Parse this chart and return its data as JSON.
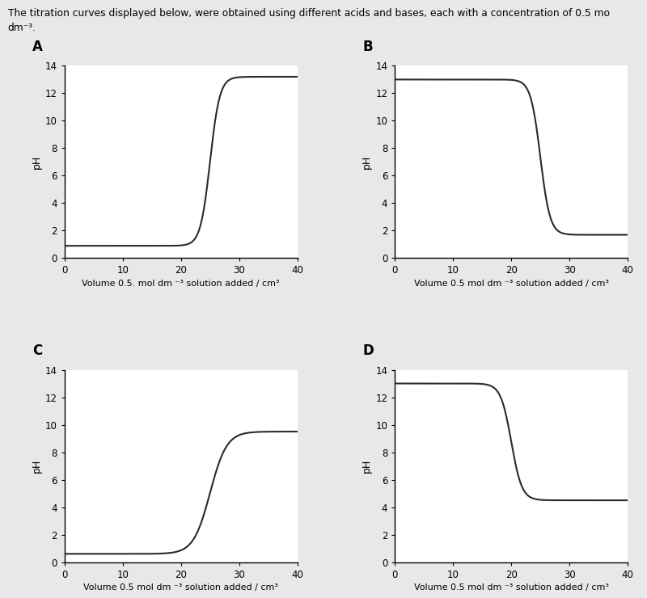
{
  "title_line1": "The titration curves displayed below, were obtained using different acids and bases, each with a concentration of 0.5 mo",
  "title_line2": "dm⁻³.",
  "panels": [
    "A",
    "B",
    "C",
    "D"
  ],
  "xlabels": [
    "Volume 0.5. mol dm ⁻³ solution added / cm³",
    "Volume 0.5 mol dm ⁻³ solution added / cm³",
    "Volume 0.5 mol dm ⁻³ solution added / cm³",
    "Volume 0.5 mol dm ⁻³ solution added / cm³"
  ],
  "ylabel": "pH",
  "xlim": [
    0,
    40
  ],
  "ylim": [
    0,
    14
  ],
  "xticks": [
    0,
    10,
    20,
    30,
    40
  ],
  "yticks": [
    0,
    2,
    4,
    6,
    8,
    10,
    12,
    14
  ],
  "bg_color": "#e8e8e8",
  "curve_color": "#2a2a2a",
  "line_width": 1.5,
  "curve_A": {
    "v_start": 0,
    "ph_start": 0.9,
    "v_jump": 25,
    "steepness": 1.2,
    "ph_low": 0.9,
    "ph_high": 13.2
  },
  "curve_B": {
    "v_start": 0,
    "ph_start": 13.0,
    "v_jump": 25,
    "steepness": 1.2,
    "ph_high": 13.0,
    "ph_low": 1.7
  },
  "curve_C": {
    "v_start": 0,
    "ph_start": 0.6,
    "v_jump": 25,
    "steepness": 0.7,
    "ph_low": 0.6,
    "ph_high": 9.5
  },
  "curve_D": {
    "v_start": 0,
    "ph_start": 13.0,
    "v_jump": 20,
    "steepness": 1.1,
    "ph_high": 13.0,
    "ph_low": 4.5
  }
}
